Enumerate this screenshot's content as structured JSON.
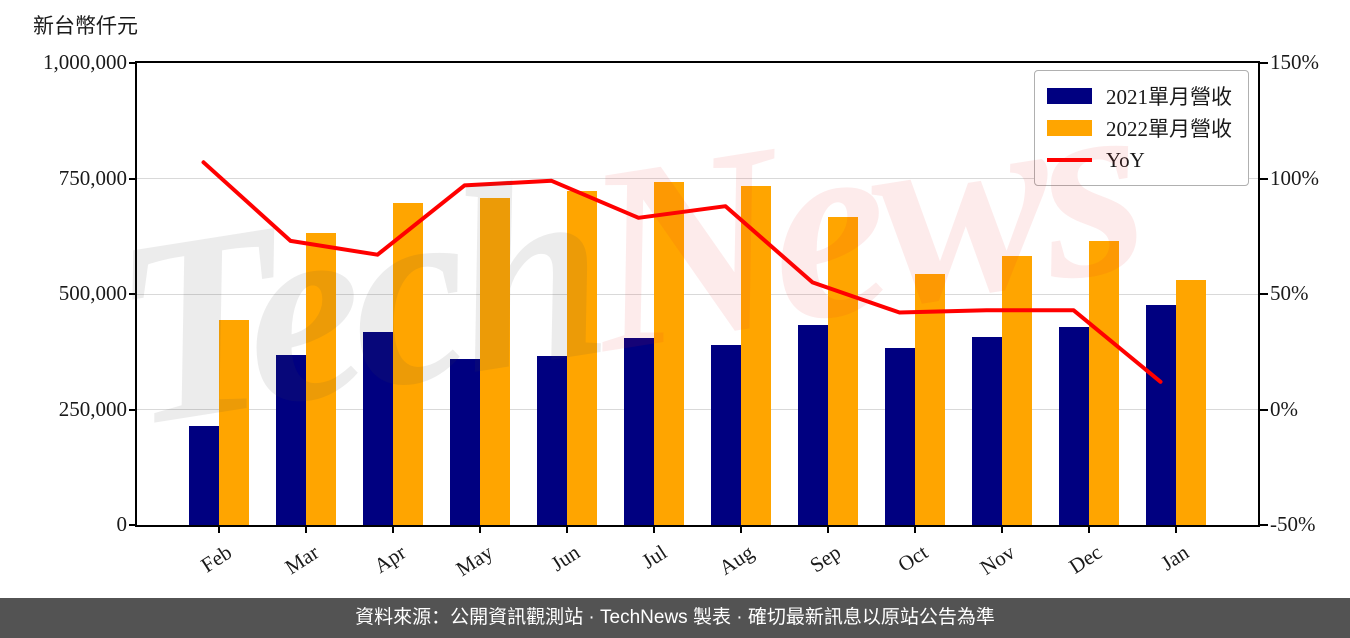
{
  "chart": {
    "unit_label": "新台幣仟元",
    "watermark_part1": "Tech",
    "watermark_part2": "News",
    "footer_text": "資料來源：公開資訊觀測站 · TechNews 製表 · 確切最新訊息以原站公告為準"
  },
  "legend": {
    "items": [
      {
        "label": "2021單月營收",
        "color": "#000080",
        "type": "box"
      },
      {
        "label": "2022單月營收",
        "color": "#FFA500",
        "type": "box"
      },
      {
        "label": "YoY",
        "color": "#FF0000",
        "type": "line"
      }
    ]
  },
  "axes": {
    "left_ticks": [
      "0",
      "250,000",
      "500,000",
      "750,000",
      "1,000,000"
    ],
    "right_ticks": [
      "-50%",
      "0%",
      "50%",
      "100%",
      "150%"
    ]
  },
  "chart_data": {
    "type": "bar+line",
    "title": "",
    "ylabel_left": "新台幣仟元",
    "ylabel_right": "%",
    "categories": [
      "Feb",
      "Mar",
      "Apr",
      "May",
      "Jun",
      "Jul",
      "Aug",
      "Sep",
      "Oct",
      "Nov",
      "Dec",
      "Jan"
    ],
    "series": [
      {
        "name": "2021單月營收",
        "type": "bar",
        "axis": "left",
        "color": "#000080",
        "values": [
          215000,
          367000,
          418000,
          359000,
          365000,
          405000,
          390000,
          433000,
          383000,
          406000,
          429000,
          476000
        ]
      },
      {
        "name": "2022單月營收",
        "type": "bar",
        "axis": "left",
        "color": "#FFA500",
        "values": [
          444000,
          633000,
          698000,
          708000,
          724000,
          743000,
          734000,
          667000,
          543000,
          582000,
          615000,
          530000
        ]
      },
      {
        "name": "YoY",
        "type": "line",
        "axis": "right",
        "color": "#FF0000",
        "values": [
          107,
          73,
          67,
          97,
          99,
          83,
          88,
          55,
          42,
          43,
          43,
          12
        ]
      }
    ],
    "left_axis": {
      "min": 0,
      "max": 1000000,
      "tick_interval": 250000
    },
    "right_axis": {
      "min": -50,
      "max": 150,
      "tick_interval": 50,
      "unit": "%"
    },
    "grid": true,
    "legend_position": "top-right"
  }
}
